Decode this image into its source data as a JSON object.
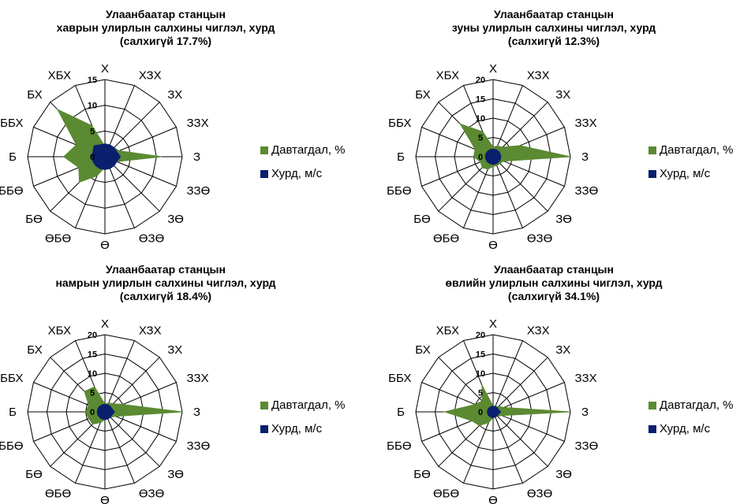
{
  "colors": {
    "frequency": "#5b8a32",
    "speed": "#0a1f6e",
    "grid": "#000000"
  },
  "legend": {
    "frequency_label": "Давтагдал, %",
    "speed_label": "Хурд, м/с"
  },
  "chart_data": [
    {
      "type": "radar",
      "title": [
        "Улаанбаатар станцын",
        "хаврын улирлын салхины чиглэл, хурд",
        "(салхигүй 17.7%)"
      ],
      "directions": [
        "Х",
        "ХЗХ",
        "ЗХ",
        "ЗЗХ",
        "З",
        "ЗЗӨ",
        "ЗӨ",
        "ӨЗӨ",
        "Ө",
        "ӨБӨ",
        "БӨ",
        "ББӨ",
        "Б",
        "ББХ",
        "БХ",
        "ХБХ"
      ],
      "radial_ticks": [
        "0",
        "5",
        "10",
        "15"
      ],
      "rmax": 15,
      "series": [
        {
          "name": "Давтагдал, %",
          "values": [
            2.0,
            2.5,
            2.5,
            3.0,
            11.0,
            2.5,
            2.0,
            1.5,
            2.0,
            4.0,
            7.0,
            5.5,
            8.0,
            6.0,
            13.0,
            6.5
          ]
        },
        {
          "name": "Хурд, м/с",
          "values": [
            2.5,
            2.5,
            2.5,
            2.5,
            3.0,
            2.5,
            2.5,
            2.5,
            2.5,
            2.5,
            2.5,
            2.5,
            2.5,
            2.5,
            3.0,
            2.5
          ]
        }
      ]
    },
    {
      "type": "radar",
      "title": [
        "Улаанбаатар станцын",
        "зуны улирлын салхины чиглэл, хурд",
        "(салхигүй 12.3%)"
      ],
      "directions": [
        "Х",
        "ХЗХ",
        "ЗХ",
        "ЗЗХ",
        "З",
        "ЗЗӨ",
        "ЗӨ",
        "ӨЗӨ",
        "Ө",
        "ӨБӨ",
        "БӨ",
        "ББӨ",
        "Б",
        "ББХ",
        "БХ",
        "ХБХ"
      ],
      "radial_ticks": [
        "0",
        "5",
        "10",
        "15",
        "20"
      ],
      "rmax": 20,
      "series": [
        {
          "name": "Давтагдал, %",
          "values": [
            2.5,
            3.0,
            3.5,
            7.5,
            20.0,
            3.0,
            2.5,
            2.5,
            2.5,
            3.5,
            4.0,
            3.5,
            5.0,
            5.0,
            12.0,
            7.0
          ]
        },
        {
          "name": "Хурд, м/с",
          "values": [
            2.0,
            2.0,
            2.0,
            2.0,
            2.0,
            2.0,
            2.0,
            2.0,
            2.0,
            2.0,
            2.0,
            2.0,
            2.0,
            2.0,
            2.0,
            2.0
          ]
        }
      ]
    },
    {
      "type": "radar",
      "title": [
        "Улаанбаатар станцын",
        "намрын улирлын салхины чиглэл, хурд",
        "(салхигүй 18.4%)"
      ],
      "directions": [
        "Х",
        "ХЗХ",
        "ЗХ",
        "ЗЗХ",
        "З",
        "ЗЗӨ",
        "ЗӨ",
        "ӨЗӨ",
        "Ө",
        "ӨБӨ",
        "БӨ",
        "ББӨ",
        "Б",
        "ББХ",
        "БХ",
        "ХБХ"
      ],
      "radial_ticks": [
        "0",
        "5",
        "10",
        "15",
        "20"
      ],
      "rmax": 20,
      "series": [
        {
          "name": "Давтагдал, %",
          "values": [
            2.0,
            2.5,
            3.0,
            5.0,
            20.0,
            3.0,
            2.0,
            2.0,
            2.0,
            3.0,
            4.5,
            4.5,
            5.0,
            4.5,
            7.5,
            7.0
          ]
        },
        {
          "name": "Хурд, м/с",
          "values": [
            2.0,
            2.0,
            2.0,
            2.0,
            2.5,
            2.0,
            2.0,
            2.0,
            2.0,
            2.0,
            2.0,
            2.0,
            2.0,
            2.0,
            2.0,
            2.0
          ]
        }
      ]
    },
    {
      "type": "radar",
      "title": [
        "Улаанбаатар станцын",
        "өвлийн улирлын салхины чиглэл, хурд",
        "(салхигүй 34.1%)"
      ],
      "directions": [
        "Х",
        "ХЗХ",
        "ЗХ",
        "ЗЗХ",
        "З",
        "ЗЗӨ",
        "ЗӨ",
        "ӨЗӨ",
        "Ө",
        "ӨБӨ",
        "БӨ",
        "ББӨ",
        "Б",
        "ББХ",
        "БХ",
        "ХБХ"
      ],
      "radial_ticks": [
        "0",
        "5",
        "10",
        "15",
        "20"
      ],
      "rmax": 20,
      "series": [
        {
          "name": "Давтагдал, %",
          "values": [
            1.5,
            1.5,
            2.0,
            3.0,
            20.0,
            2.5,
            1.5,
            1.5,
            1.5,
            3.0,
            5.0,
            6.0,
            12.5,
            5.0,
            4.0,
            7.5
          ]
        },
        {
          "name": "Хурд, м/с",
          "values": [
            1.5,
            1.5,
            1.5,
            1.5,
            2.0,
            1.5,
            1.5,
            1.5,
            1.5,
            1.5,
            1.5,
            1.5,
            1.5,
            1.5,
            1.5,
            1.5
          ]
        }
      ]
    }
  ]
}
